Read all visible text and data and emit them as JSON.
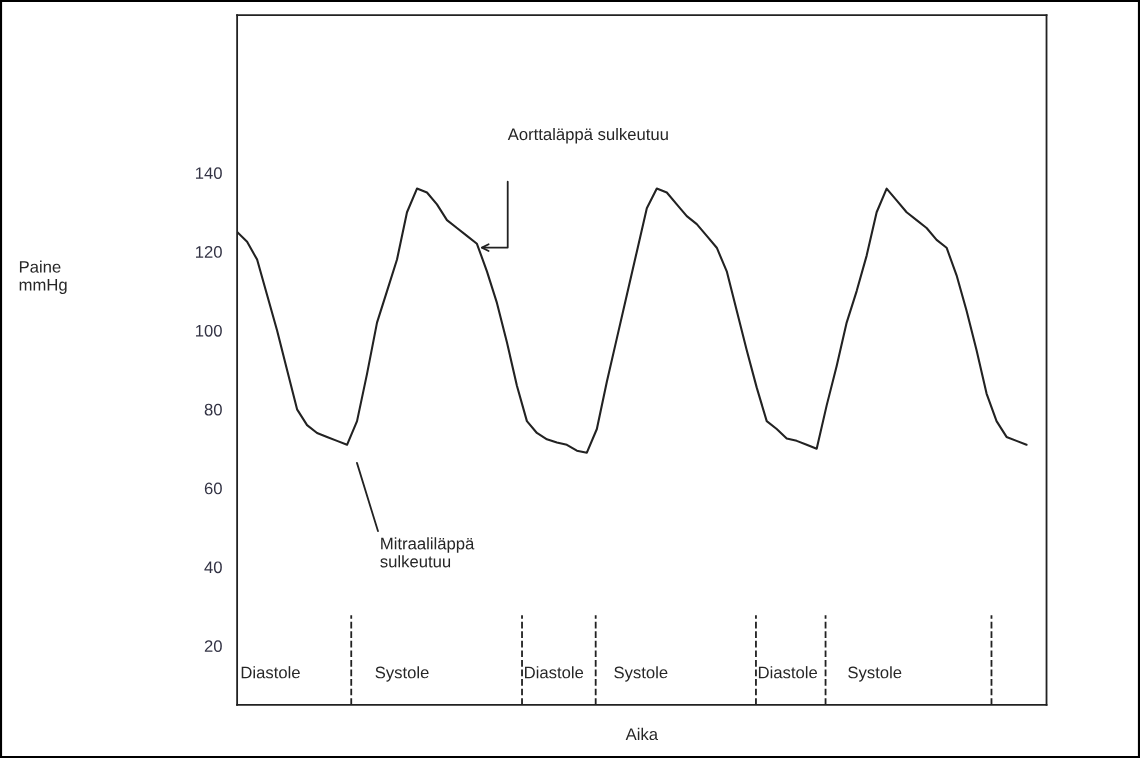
{
  "chart_data": {
    "type": "line",
    "xlabel": "Aika",
    "categories": [
      null,
      null,
      null,
      null,
      null,
      null,
      null,
      null,
      null,
      null,
      null,
      null,
      null,
      null,
      null,
      null,
      null,
      null,
      null,
      null,
      null,
      null,
      null,
      null,
      null,
      null,
      null,
      null,
      null,
      null,
      null,
      null,
      null,
      null,
      null,
      null,
      null,
      null,
      null,
      null,
      null,
      null,
      null,
      null,
      null,
      null,
      null,
      null,
      null,
      null,
      null,
      null,
      null,
      null,
      null,
      null,
      null,
      null,
      null,
      null,
      null,
      null,
      null,
      null,
      null,
      null,
      null,
      null,
      null,
      null,
      null,
      null,
      null,
      null,
      null,
      null,
      null,
      null,
      null,
      null
    ],
    "series": [
      {
        "color": "#222222",
        "values": [
          125,
          122.5,
          118,
          109,
          100,
          90,
          80,
          76,
          74,
          73,
          72,
          71,
          77,
          89,
          102,
          110,
          118,
          130,
          136,
          135,
          132,
          128,
          126,
          124,
          122,
          115,
          107,
          97,
          86,
          77,
          74,
          72.4,
          71.6,
          71,
          69.5,
          69,
          75,
          87,
          98,
          109,
          120,
          131,
          136,
          135,
          132,
          129,
          127,
          124,
          121,
          115,
          105,
          95,
          85.5,
          77,
          75,
          72.6,
          72,
          71,
          70,
          81,
          91,
          102,
          110,
          119,
          130,
          136,
          133,
          130,
          128,
          126,
          123,
          121,
          114,
          105,
          95,
          84,
          77,
          73,
          72,
          71
        ]
      }
    ],
    "ylim": [
      5,
      180
    ],
    "yticks": [
      20,
      40,
      60,
      80,
      100,
      120,
      140
    ],
    "annotations": [
      "Paine\nmmHg",
      "Aorttaläppä sulkeutuu",
      "Mitraaliläppä\nsulkeutuu",
      "Diastole",
      "Systole",
      "Diastole",
      "Systole",
      "Diastole",
      "Systole"
    ],
    "grid": false,
    "legend": false,
    "marker": "none",
    "line_style": "solid"
  }
}
